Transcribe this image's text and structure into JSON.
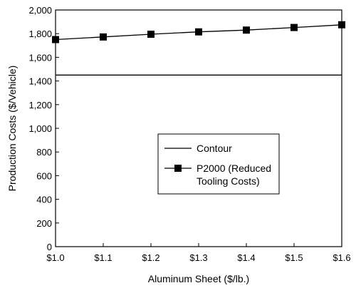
{
  "chart_data": {
    "type": "line",
    "xlabel": "Aluminum Sheet ($/lb.)",
    "ylabel": "Production Costs ($/Vehicle)",
    "xlim": [
      1.0,
      1.6
    ],
    "ylim": [
      0,
      2000
    ],
    "x_ticks": [
      "$1.0",
      "$1.1",
      "$1.2",
      "$1.3",
      "$1.4",
      "$1.5",
      "$1.6"
    ],
    "y_ticks": [
      "0",
      "200",
      "400",
      "600",
      "800",
      "1,000",
      "1,200",
      "1,400",
      "1,600",
      "1,800",
      "2,000"
    ],
    "legend_position": "center-right",
    "grid": false,
    "series": [
      {
        "name": "Contour",
        "marker": "none",
        "x": [
          1.0,
          1.6
        ],
        "y": [
          1450,
          1450
        ]
      },
      {
        "name": "P2000 (Reduced Tooling Costs)",
        "marker": "square",
        "x": [
          1.0,
          1.1,
          1.2,
          1.3,
          1.4,
          1.5,
          1.6
        ],
        "y": [
          1750,
          1772,
          1795,
          1815,
          1830,
          1852,
          1875
        ]
      }
    ]
  },
  "legend": {
    "contour": "Contour",
    "p2000_line1": "P2000 (Reduced",
    "p2000_line2": "Tooling Costs)"
  }
}
